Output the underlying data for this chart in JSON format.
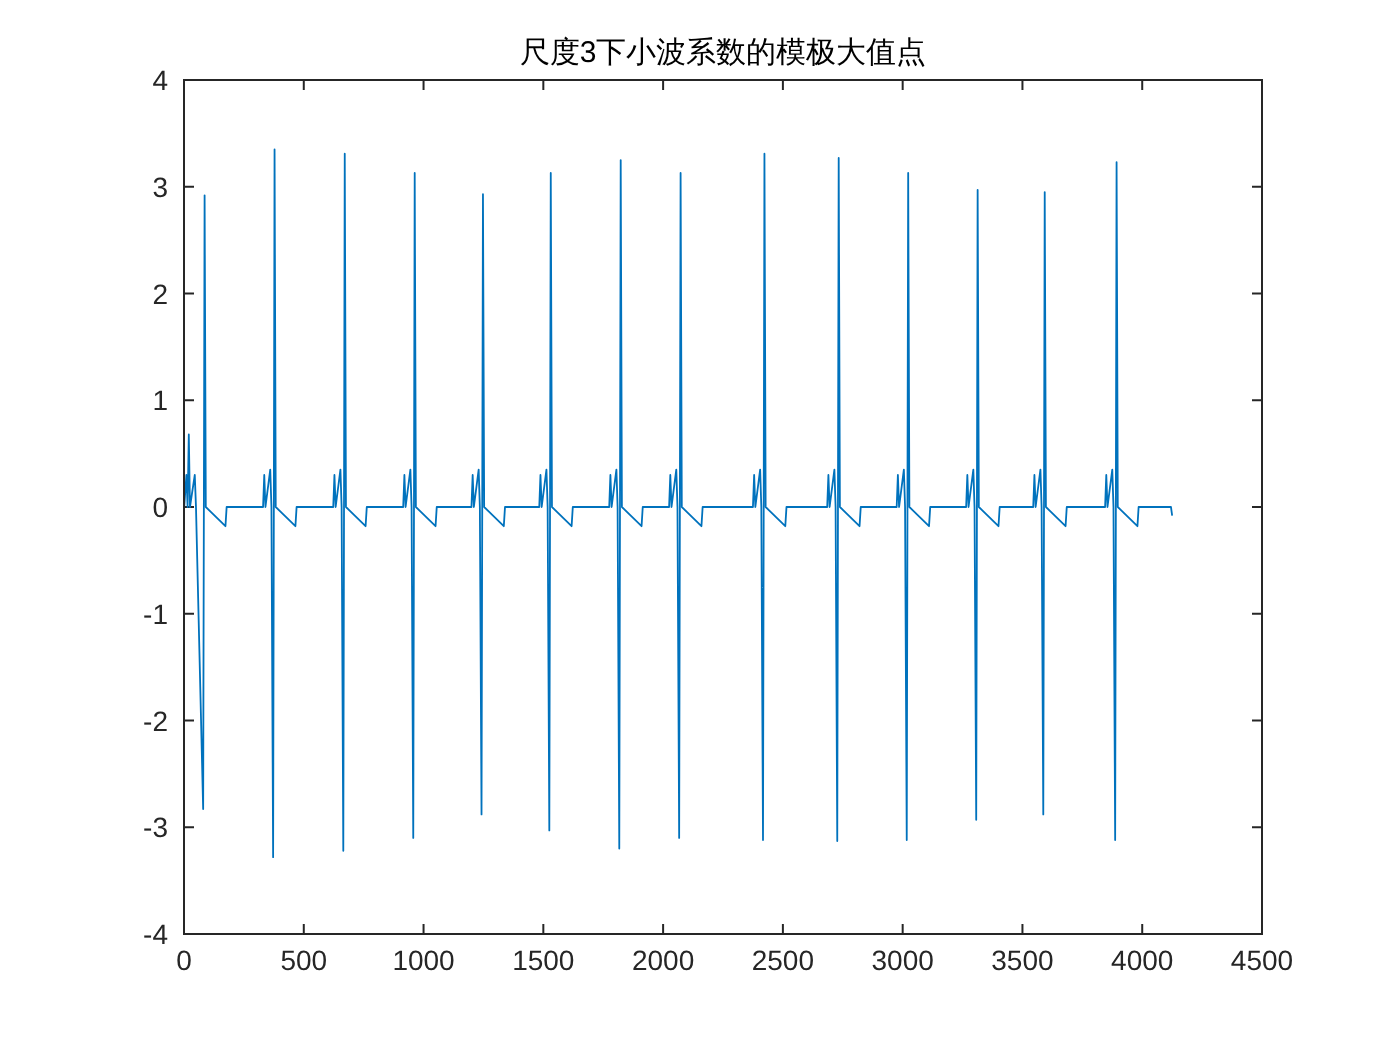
{
  "chart_data": {
    "type": "line",
    "title": "尺度3下小波系数的模极大值点",
    "x": [
      1,
      10,
      15,
      20,
      25,
      45,
      50,
      80,
      86,
      91,
      173,
      178,
      330,
      335,
      340,
      360,
      365,
      372,
      378,
      383,
      465,
      470,
      623,
      628,
      633,
      653,
      658,
      665,
      671,
      676,
      758,
      763,
      915,
      920,
      925,
      945,
      950,
      957,
      963,
      968,
      1050,
      1055,
      1200,
      1205,
      1210,
      1230,
      1235,
      1242,
      1248,
      1253,
      1335,
      1340,
      1483,
      1488,
      1493,
      1513,
      1518,
      1525,
      1531,
      1536,
      1618,
      1623,
      1775,
      1780,
      1785,
      1805,
      1810,
      1817,
      1823,
      1828,
      1910,
      1915,
      2025,
      2030,
      2035,
      2055,
      2060,
      2067,
      2073,
      2078,
      2160,
      2165,
      2375,
      2380,
      2385,
      2405,
      2410,
      2417,
      2423,
      2428,
      2510,
      2515,
      2685,
      2690,
      2695,
      2715,
      2720,
      2727,
      2733,
      2738,
      2820,
      2825,
      2975,
      2980,
      2985,
      3005,
      3010,
      3017,
      3023,
      3028,
      3110,
      3115,
      3265,
      3270,
      3275,
      3295,
      3300,
      3307,
      3313,
      3318,
      3400,
      3405,
      3545,
      3550,
      3555,
      3575,
      3580,
      3587,
      3593,
      3598,
      3680,
      3685,
      3845,
      3850,
      3855,
      3875,
      3880,
      3887,
      3893,
      3898,
      3980,
      3985,
      4120,
      4125
    ],
    "series": [
      {
        "color": "#0072bd",
        "values": [
          0,
          0.3,
          0,
          0.68,
          0,
          0.3,
          0,
          -2.83,
          2.92,
          0,
          -0.18,
          0,
          0,
          0.3,
          0,
          0.35,
          0,
          -3.28,
          3.35,
          0,
          -0.18,
          0,
          0,
          0.3,
          0,
          0.35,
          0,
          -3.22,
          3.31,
          0,
          -0.18,
          0,
          0,
          0.3,
          0,
          0.35,
          0,
          -3.1,
          3.13,
          0,
          -0.18,
          0,
          0,
          0.3,
          0,
          0.35,
          0,
          -2.88,
          2.93,
          0,
          -0.18,
          0,
          0,
          0.3,
          0,
          0.35,
          0,
          -3.03,
          3.13,
          0,
          -0.18,
          0,
          0,
          0.3,
          0,
          0.35,
          0,
          -3.2,
          3.25,
          0,
          -0.18,
          0,
          0,
          0.3,
          0,
          0.35,
          0,
          -3.1,
          3.13,
          0,
          -0.18,
          0,
          0,
          0.3,
          0,
          0.35,
          0,
          -3.12,
          3.31,
          0,
          -0.18,
          0,
          0,
          0.3,
          0,
          0.35,
          0,
          -3.13,
          3.27,
          0,
          -0.18,
          0,
          0,
          0.3,
          0,
          0.35,
          0,
          -3.12,
          3.13,
          0,
          -0.18,
          0,
          0,
          0.3,
          0,
          0.35,
          0,
          -2.93,
          2.97,
          0,
          -0.18,
          0,
          0,
          0.3,
          0,
          0.35,
          0,
          -2.88,
          2.95,
          0,
          -0.18,
          0,
          0,
          0.3,
          0,
          0.35,
          0,
          -3.12,
          3.23,
          0,
          -0.18,
          0,
          0,
          -0.08
        ]
      }
    ],
    "xlim": [
      0,
      4500
    ],
    "xticks": [
      0,
      500,
      1000,
      1500,
      2000,
      2500,
      3000,
      3500,
      4000,
      4500
    ],
    "ylim": [
      -4,
      4
    ],
    "yticks": [
      -4,
      -3,
      -2,
      -1,
      0,
      1,
      2,
      3,
      4
    ],
    "grid": false,
    "line_style": "solid"
  }
}
